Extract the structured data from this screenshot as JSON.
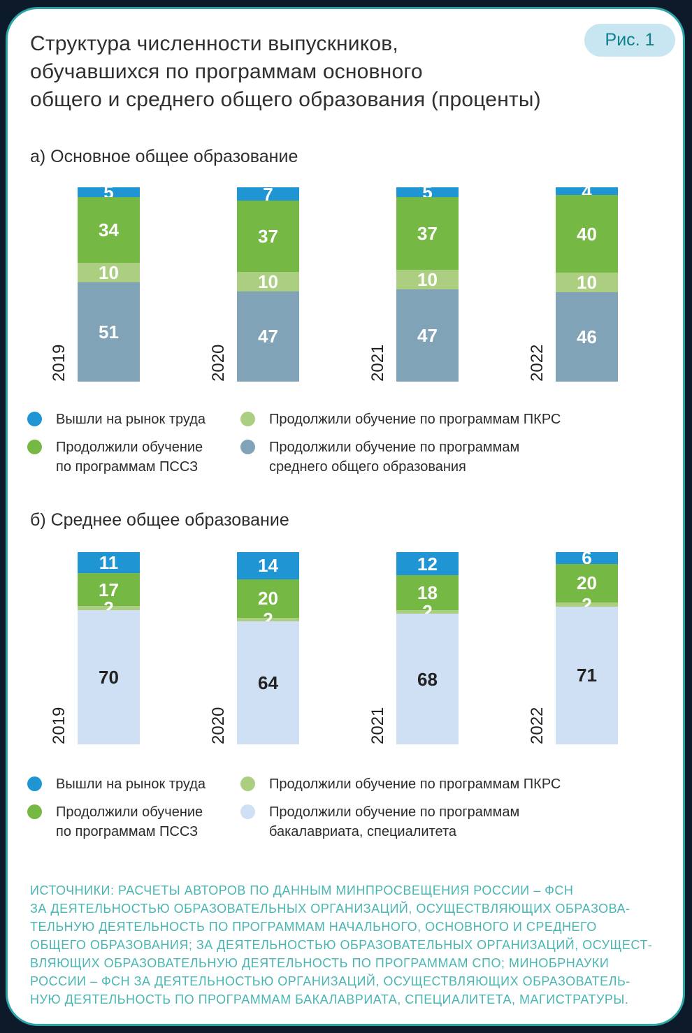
{
  "page": {
    "badge": "Рис. 1",
    "title": "Структура численности выпускников,\nобучавшихся по программам основного\nобщего и среднего общего образования (проценты)"
  },
  "colors": {
    "page_background": "#0c1a2a",
    "card_border": "#2ba4a6",
    "badge_background": "#c8e6f2",
    "badge_text": "#10808f",
    "source_text": "#4ab6b3",
    "blue": "#1f96d3",
    "green": "#76b844",
    "light_green": "#abce81",
    "blue_gray": "#81a3b8",
    "light_blue": "#cfe0f4"
  },
  "chart_data": [
    {
      "type": "bar",
      "stacked": true,
      "unit": "percent",
      "section_label": "а) Основное общее образование",
      "categories": [
        "2019",
        "2020",
        "2021",
        "2022"
      ],
      "series": [
        {
          "name": "Вышли на рынок труда",
          "color": "#1f96d3",
          "label_color": "#ffffff",
          "values": [
            5,
            7,
            5,
            4
          ]
        },
        {
          "name": "Продолжили обучение по программам ПССЗ",
          "color": "#76b844",
          "label_color": "#ffffff",
          "values": [
            34,
            37,
            37,
            40
          ]
        },
        {
          "name": "Продолжили обучение по программам ПКРС",
          "color": "#abce81",
          "label_color": "#ffffff",
          "values": [
            10,
            10,
            10,
            10
          ]
        },
        {
          "name": "Продолжили обучение по программам среднего общего образования",
          "color": "#81a3b8",
          "label_color": "#ffffff",
          "values": [
            51,
            47,
            47,
            46
          ]
        }
      ],
      "legend": [
        {
          "label": "Вышли на рынок труда",
          "color": "#1f96d3"
        },
        {
          "label": "Продолжили обучение по программам ПКРС",
          "color": "#abce81"
        },
        {
          "label": "Продолжили обучение\nпо программам ПССЗ",
          "color": "#76b844"
        },
        {
          "label": "Продолжили обучение по программам\nсреднего общего образования",
          "color": "#81a3b8"
        }
      ],
      "ylim": [
        0,
        100
      ]
    },
    {
      "type": "bar",
      "stacked": true,
      "unit": "percent",
      "section_label": "б) Среднее общее образование",
      "categories": [
        "2019",
        "2020",
        "2021",
        "2022"
      ],
      "series": [
        {
          "name": "Вышли на рынок труда",
          "color": "#1f96d3",
          "label_color": "#ffffff",
          "values": [
            11,
            14,
            12,
            6
          ]
        },
        {
          "name": "Продолжили обучение по программам ПССЗ",
          "color": "#76b844",
          "label_color": "#ffffff",
          "values": [
            17,
            20,
            18,
            20
          ]
        },
        {
          "name": "Продолжили обучение по программам ПКРС",
          "color": "#abce81",
          "label_color": "#ffffff",
          "values": [
            2,
            2,
            2,
            2
          ]
        },
        {
          "name": "Продолжили обучение по программам бакалавриата, специалитета",
          "color": "#cfe0f4",
          "label_color": "#222222",
          "values": [
            70,
            64,
            68,
            71
          ]
        }
      ],
      "legend": [
        {
          "label": "Вышли на рынок труда",
          "color": "#1f96d3"
        },
        {
          "label": "Продолжили обучение по программам ПКРС",
          "color": "#abce81"
        },
        {
          "label": "Продолжили обучение\nпо программам ПССЗ",
          "color": "#76b844"
        },
        {
          "label": "Продолжили обучение по программам\nбакалавриата, специалитета",
          "color": "#cfe0f4"
        }
      ],
      "ylim": [
        0,
        100
      ]
    }
  ],
  "source": {
    "lines": [
      "ИСТОЧНИКИ: РАСЧЕТЫ АВТОРОВ ПО ДАННЫМ МИНПРОСВЕЩЕНИЯ РОССИИ – ФСН",
      "ЗА ДЕЯТЕЛЬНОСТЬЮ ОБРАЗОВАТЕЛЬНЫХ ОРГАНИЗАЦИЙ, ОСУЩЕСТВЛЯЮЩИХ ОБРАЗОВА-",
      "ТЕЛЬНУЮ ДЕЯТЕЛЬНОСТЬ ПО ПРОГРАММАМ НАЧАЛЬНОГО, ОСНОВНОГО И СРЕДНЕГО",
      "ОБЩЕГО ОБРАЗОВАНИЯ; ЗА ДЕЯТЕЛЬНОСТЬЮ ОБРАЗОВАТЕЛЬНЫХ ОРГАНИЗАЦИЙ, ОСУЩЕСТ-",
      "ВЛЯЮЩИХ ОБРАЗОВАТЕЛЬНУЮ ДЕЯТЕЛЬНОСТЬ ПО ПРОГРАММАМ СПО; МИНОБРНАУКИ",
      "РОССИИ – ФСН ЗА ДЕЯТЕЛЬНОСТЬЮ ОРГАНИЗАЦИЙ, ОСУЩЕСТВЛЯЮЩИХ ОБРАЗОВАТЕЛЬ-",
      "НУЮ ДЕЯТЕЛЬНОСТЬ ПО ПРОГРАММАМ БАКАЛАВРИАТА, СПЕЦИАЛИТЕТА, МАГИСТРАТУРЫ."
    ]
  }
}
